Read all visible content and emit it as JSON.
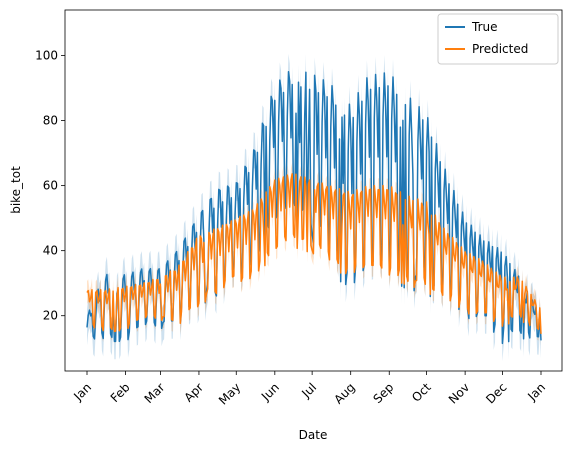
{
  "chart_data": {
    "type": "line",
    "xlabel": "Date",
    "ylabel": "bike_tot",
    "x_ticks": [
      "Jan",
      "Feb",
      "Mar",
      "Apr",
      "May",
      "Jun",
      "Jul",
      "Aug",
      "Sep",
      "Oct",
      "Nov",
      "Dec",
      "Jan"
    ],
    "x_range": [
      "2023-01-01",
      "2024-01-01"
    ],
    "yticks": [
      20,
      40,
      60,
      80,
      100
    ],
    "ylim": [
      3,
      114
    ],
    "grid": false,
    "legend_position": "top-right",
    "weekly_x": [
      "2023-01-01",
      "2023-01-15",
      "2023-02-01",
      "2023-02-15",
      "2023-03-01",
      "2023-03-15",
      "2023-04-01",
      "2023-04-15",
      "2023-05-01",
      "2023-05-15",
      "2023-06-01",
      "2023-06-15",
      "2023-07-01",
      "2023-07-15",
      "2023-08-01",
      "2023-08-15",
      "2023-09-01",
      "2023-09-15",
      "2023-10-01",
      "2023-10-15",
      "2023-11-01",
      "2023-11-15",
      "2023-12-01",
      "2023-12-15",
      "2024-01-01"
    ],
    "series": [
      {
        "name": "True",
        "color": "#1f77b4",
        "weekly_high": [
          20,
          33,
          33,
          35,
          35,
          41,
          52,
          60,
          62,
          72,
          92,
          97,
          95,
          92,
          85,
          94,
          95,
          88,
          82,
          66,
          50,
          44,
          40,
          32,
          20
        ],
        "weekly_low": [
          12,
          11,
          11,
          15,
          15,
          16,
          22,
          23,
          28,
          34,
          45,
          45,
          40,
          38,
          18,
          32,
          28,
          25,
          24,
          20,
          18,
          16,
          10,
          12,
          12
        ]
      },
      {
        "name": "Predicted",
        "color": "#ff7f0e",
        "weekly_high": [
          28,
          28,
          29,
          30,
          32,
          35,
          45,
          47,
          50,
          53,
          62,
          64,
          62,
          60,
          58,
          60,
          60,
          57,
          55,
          47,
          40,
          37,
          32,
          32,
          22
        ],
        "weekly_low": [
          16,
          14,
          15,
          18,
          18,
          16,
          22,
          25,
          28,
          30,
          38,
          40,
          38,
          36,
          28,
          34,
          30,
          28,
          26,
          22,
          20,
          18,
          16,
          18,
          14
        ]
      }
    ]
  }
}
